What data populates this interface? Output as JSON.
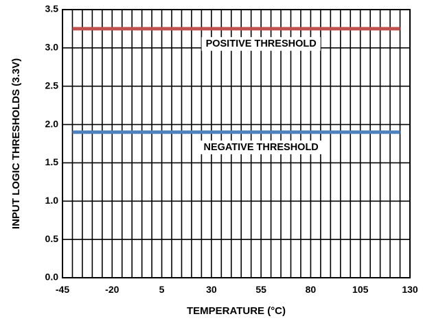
{
  "chart_data": {
    "type": "line",
    "title": "",
    "xlabel": "TEMPERATURE (°C)",
    "ylabel": "INPUT LOGIC THRESHOLDS (3.3V)",
    "xlim": [
      -45,
      130
    ],
    "ylim": [
      0,
      3.5
    ],
    "x_ticks": [
      -45,
      -20,
      5,
      30,
      55,
      80,
      105,
      130
    ],
    "x_tick_labels": [
      "-45",
      "-20",
      "5",
      "30",
      "55",
      "80",
      "105",
      "130"
    ],
    "y_ticks": [
      0,
      0.5,
      1.0,
      1.5,
      2.0,
      2.5,
      3.0,
      3.5
    ],
    "y_tick_labels": [
      "0.0",
      "0.5",
      "1.0",
      "1.5",
      "2.0",
      "2.5",
      "3.0",
      "3.5"
    ],
    "grid": {
      "vertical_step": 5,
      "horizontal_step": 0.5
    },
    "series": [
      {
        "name": "",
        "color": "#c0504d",
        "x": [
          -40,
          125
        ],
        "y": [
          3.25,
          3.25
        ]
      },
      {
        "name": "",
        "color": "#4f81bd",
        "x": [
          -40,
          125
        ],
        "y": [
          1.9,
          1.9
        ]
      }
    ],
    "annotations": [
      {
        "text": "POSITIVE THRESHOLD",
        "x": 55,
        "y": 3.05
      },
      {
        "text": "NEGATIVE THRESHOLD",
        "x": 55,
        "y": 1.7
      }
    ]
  }
}
